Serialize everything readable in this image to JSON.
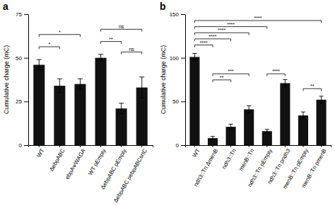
{
  "chart_data": [
    {
      "type": "bar",
      "title": "a",
      "categories": [
        "WT",
        "ΔebpABC",
        "ebpAᴪWAGA",
        "WT pEmpty",
        "ΔebpABC pEmpty",
        "ΔebpABC pebpABCsrtC"
      ],
      "values": [
        46,
        34,
        35,
        50,
        21,
        33
      ],
      "errors": [
        3,
        4,
        3,
        2,
        3,
        6
      ],
      "color": "#111111",
      "ylabel": "Cumulative charge (mC)",
      "ylim": [
        0,
        75
      ],
      "yticks": [
        0,
        25,
        50,
        75
      ],
      "annotations": [
        {
          "x1": "WT",
          "x2": "ΔebpABC",
          "y": 55,
          "text": "*"
        },
        {
          "x1": "WT",
          "x2": "ebpAᴪWAGA",
          "y": 62,
          "text": "*"
        },
        {
          "x1": "WT pEmpty",
          "x2": "ΔebpABC pEmpty",
          "y": 58,
          "text": "**"
        },
        {
          "x1": "WT pEmpty",
          "x2": "ΔebpABC pebpABCsrtC",
          "y": 65,
          "text": "ns"
        },
        {
          "x1": "ΔebpABC pEmpty",
          "x2": "ΔebpABC pebpABCsrtC",
          "y": 52,
          "text": "ns"
        }
      ]
    },
    {
      "type": "bar",
      "title": "b",
      "categories": [
        "WT",
        "ndh3::Tn ΔmenB",
        "ndh3::Tn",
        "menB::Tn",
        "ndh3::Tn pEmpty",
        "ndh3::Tn pndh3",
        "menB::Tn pEmpty",
        "menB::Tn pmenB"
      ],
      "values": [
        101,
        8,
        21,
        41,
        16,
        71,
        34,
        52
      ],
      "errors": [
        4,
        2,
        3,
        4,
        2,
        4,
        4,
        4
      ],
      "color": "#111111",
      "ylabel": "Cumulative charge (mC)",
      "ylim": [
        0,
        150
      ],
      "yticks": [
        0,
        50,
        100,
        150
      ],
      "annotations": [
        {
          "x1": "WT",
          "x2": "ndh3::Tn ΔmenB",
          "y": 112,
          "text": "****"
        },
        {
          "x1": "WT",
          "x2": "ndh3::Tn",
          "y": 119,
          "text": "****"
        },
        {
          "x1": "WT",
          "x2": "menB::Tn",
          "y": 126,
          "text": "****"
        },
        {
          "x1": "WT",
          "x2": "ndh3::Tn pEmpty",
          "y": 133,
          "text": "****"
        },
        {
          "x1": "WT",
          "x2": "menB::Tn pmenB",
          "y": 140,
          "text": "****"
        },
        {
          "x1": "ndh3::Tn ΔmenB",
          "x2": "ndh3::Tn",
          "y": 72,
          "text": "**"
        },
        {
          "x1": "ndh3::Tn ΔmenB",
          "x2": "menB::Tn",
          "y": 79,
          "text": "***"
        },
        {
          "x1": "ndh3::Tn pEmpty",
          "x2": "ndh3::Tn pndh3",
          "y": 79,
          "text": "****"
        },
        {
          "x1": "menB::Tn pEmpty",
          "x2": "menB::Tn pmenB",
          "y": 62,
          "text": "**"
        }
      ]
    }
  ]
}
